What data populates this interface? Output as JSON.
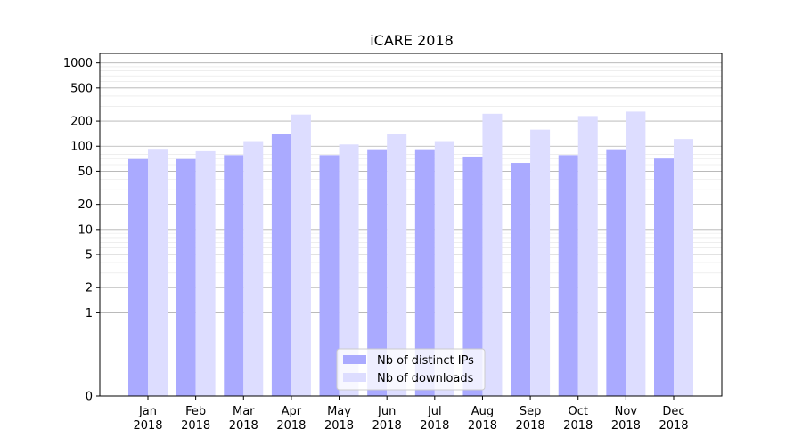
{
  "chart_data": {
    "type": "bar",
    "title": "iCARE 2018",
    "xlabel": "",
    "ylabel": "",
    "yscale": "symlog",
    "ylim": [
      0,
      1300
    ],
    "yticks": [
      0,
      1,
      2,
      5,
      10,
      20,
      50,
      100,
      200,
      500,
      1000
    ],
    "ytick_labels": [
      "0",
      "1",
      "2",
      "5",
      "10",
      "20",
      "50",
      "100",
      "200",
      "500",
      "1000"
    ],
    "grid": true,
    "legend_position": "lower-center",
    "categories": [
      [
        "Jan",
        "2018"
      ],
      [
        "Feb",
        "2018"
      ],
      [
        "Mar",
        "2018"
      ],
      [
        "Apr",
        "2018"
      ],
      [
        "May",
        "2018"
      ],
      [
        "Jun",
        "2018"
      ],
      [
        "Jul",
        "2018"
      ],
      [
        "Aug",
        "2018"
      ],
      [
        "Sep",
        "2018"
      ],
      [
        "Oct",
        "2018"
      ],
      [
        "Nov",
        "2018"
      ],
      [
        "Dec",
        "2018"
      ]
    ],
    "series": [
      {
        "name": "Nb of distinct IPs",
        "color": "#aaaaff",
        "values": [
          70,
          70,
          78,
          140,
          78,
          92,
          92,
          75,
          63,
          78,
          92,
          71
        ]
      },
      {
        "name": "Nb of downloads",
        "color": "#ddddff",
        "values": [
          93,
          87,
          115,
          240,
          105,
          140,
          115,
          245,
          158,
          230,
          260,
          122
        ]
      }
    ]
  }
}
